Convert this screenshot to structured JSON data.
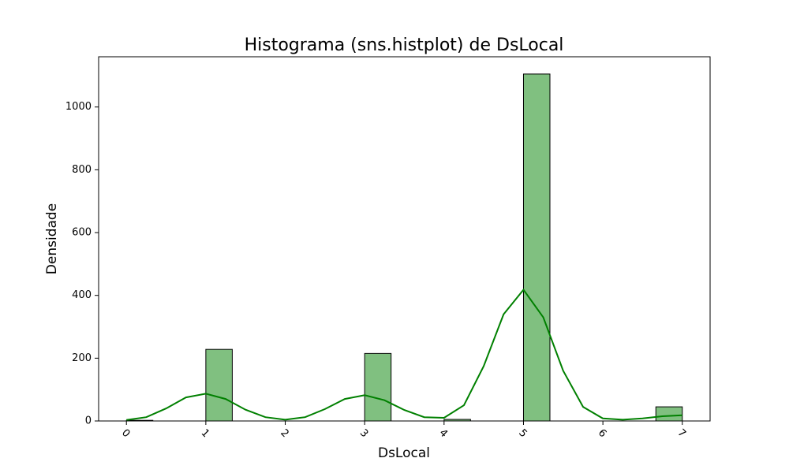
{
  "chart_data": {
    "type": "bar",
    "title": "Histograma (sns.histplot) de DsLocal",
    "xlabel": "DsLocal",
    "ylabel": "Densidade",
    "xlim": [
      -0.35,
      7.35
    ],
    "ylim": [
      0,
      1160
    ],
    "x_ticks": [
      0,
      1,
      2,
      3,
      4,
      5,
      6,
      7
    ],
    "y_ticks": [
      0,
      200,
      400,
      600,
      800,
      1000
    ],
    "x_tick_rotation": 45,
    "grid": false,
    "bin_width": 0.3333,
    "bins": [
      {
        "x_start": 0.0,
        "x_end": 0.333,
        "count": 2
      },
      {
        "x_start": 1.0,
        "x_end": 1.333,
        "count": 228
      },
      {
        "x_start": 3.0,
        "x_end": 3.333,
        "count": 215
      },
      {
        "x_start": 4.0,
        "x_end": 4.333,
        "count": 5
      },
      {
        "x_start": 5.0,
        "x_end": 5.333,
        "count": 1105
      },
      {
        "x_start": 6.667,
        "x_end": 7.0,
        "count": 45
      }
    ],
    "kde_curve": {
      "x": [
        0,
        0.25,
        0.5,
        0.75,
        1.0,
        1.25,
        1.5,
        1.75,
        2.0,
        2.25,
        2.5,
        2.75,
        3.0,
        3.25,
        3.5,
        3.75,
        4.0,
        4.25,
        4.5,
        4.75,
        5.0,
        5.25,
        5.5,
        5.75,
        6.0,
        6.25,
        6.5,
        6.75,
        7.0
      ],
      "y": [
        3,
        12,
        40,
        75,
        87,
        70,
        36,
        12,
        4,
        12,
        38,
        70,
        82,
        66,
        35,
        12,
        10,
        50,
        175,
        340,
        418,
        330,
        160,
        45,
        8,
        4,
        8,
        15,
        18
      ]
    },
    "colors": {
      "bar_fill": "#80c080",
      "bar_edge": "#000000",
      "kde_line": "#008000"
    }
  }
}
